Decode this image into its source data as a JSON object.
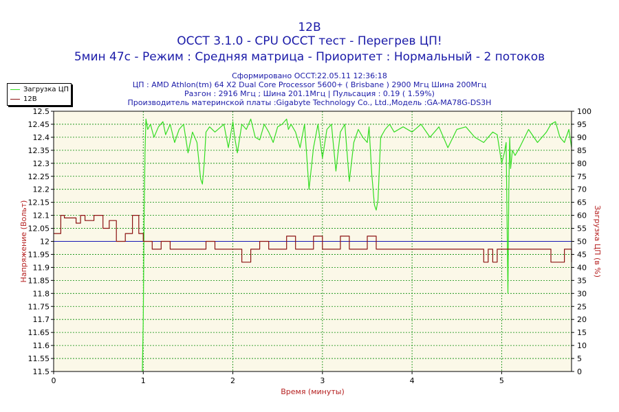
{
  "header": {
    "title": "12В",
    "subtitle": "OCCT 3.1.0 - CPU OCCT тест - Перегрев ЦП!",
    "mode_line": "5мин 47с - Режим : Средняя матрица - Приоритет : Нормальный - 2 потоков",
    "info_lines": [
      "Сформировано OCCT:22.05.11 12:36:18",
      "ЦП : AMD Athlon(tm) 64 X2 Dual Core Processor 5600+ ( Brisbane ) 2900 Mгц Шина 200Mгц",
      "Разгон : 2916 Mгц ; Шина 201.1Mгц | Пульсация : 0.19 ( 1.59%)",
      "Производитель материнской платы :Gigabyte Technology Co., Ltd.,Модель :GA-MA78G-DS3H"
    ]
  },
  "colors": {
    "text": "#1a1aa8",
    "cpu_line": "#33dd22",
    "voltage_line": "#8b1010",
    "reference_line": "#1414b4",
    "grid": "#008800",
    "plot_bg": "#fbf8e8",
    "axis_label": "#b52020"
  },
  "chart_data": {
    "type": "line",
    "xlabel": "Время (минуты)",
    "ylabel_left": "Напряжение (Вольт)",
    "ylabel_right": "Загрузка ЦП (в %)",
    "xlim": [
      0,
      5.78
    ],
    "ylim_left": [
      11.5,
      12.5
    ],
    "ylim_right": [
      0,
      100
    ],
    "x_ticks": [
      "0",
      "1",
      "2",
      "3",
      "4",
      "5"
    ],
    "y_left_ticks": [
      "11.5",
      "11.55",
      "11.6",
      "11.65",
      "11.7",
      "11.75",
      "11.8",
      "11.85",
      "11.9",
      "11.95",
      "12",
      "12.05",
      "12.1",
      "12.15",
      "12.2",
      "12.25",
      "12.3",
      "12.35",
      "12.4",
      "12.45",
      "12.5"
    ],
    "y_right_ticks": [
      "0",
      "5",
      "10",
      "15",
      "20",
      "25",
      "30",
      "35",
      "40",
      "45",
      "50",
      "55",
      "60",
      "65",
      "70",
      "75",
      "80",
      "85",
      "90",
      "95",
      "100"
    ],
    "grid": true,
    "legend": "top-left",
    "reference_line": 12.0,
    "series": [
      {
        "name": "Загрузка ЦП",
        "axis": "right",
        "x": [
          0.99,
          1.0,
          1.01,
          1.02,
          1.03,
          1.05,
          1.08,
          1.12,
          1.17,
          1.22,
          1.25,
          1.3,
          1.35,
          1.4,
          1.45,
          1.5,
          1.55,
          1.6,
          1.64,
          1.66,
          1.68,
          1.7,
          1.74,
          1.8,
          1.9,
          1.95,
          2.0,
          2.02,
          2.05,
          2.1,
          2.15,
          2.2,
          2.25,
          2.3,
          2.35,
          2.4,
          2.45,
          2.5,
          2.55,
          2.6,
          2.62,
          2.65,
          2.7,
          2.75,
          2.8,
          2.85,
          2.9,
          2.95,
          3.0,
          3.05,
          3.1,
          3.15,
          3.2,
          3.25,
          3.3,
          3.35,
          3.4,
          3.45,
          3.5,
          3.52,
          3.55,
          3.58,
          3.6,
          3.62,
          3.65,
          3.7,
          3.75,
          3.8,
          3.9,
          4.0,
          4.1,
          4.2,
          4.3,
          4.4,
          4.5,
          4.6,
          4.7,
          4.8,
          4.85,
          4.9,
          4.95,
          5.0,
          5.03,
          5.05,
          5.07,
          5.08,
          5.09,
          5.1,
          5.12,
          5.15,
          5.2,
          5.3,
          5.4,
          5.5,
          5.55,
          5.6,
          5.65,
          5.7,
          5.75,
          5.78
        ],
        "values": [
          0,
          20,
          60,
          85,
          97,
          93,
          95,
          90,
          94,
          96,
          91,
          95,
          88,
          93,
          95,
          84,
          92,
          88,
          74,
          72,
          80,
          92,
          94,
          92,
          95,
          86,
          96,
          90,
          84,
          95,
          93,
          97,
          90,
          89,
          95,
          92,
          88,
          94,
          95,
          97,
          93,
          95,
          92,
          86,
          95,
          70,
          86,
          95,
          82,
          93,
          95,
          77,
          92,
          95,
          73,
          88,
          93,
          90,
          88,
          94,
          76,
          64,
          62,
          66,
          90,
          93,
          95,
          92,
          94,
          92,
          95,
          90,
          94,
          86,
          93,
          94,
          90,
          88,
          90,
          92,
          91,
          80,
          84,
          88,
          30,
          70,
          90,
          78,
          85,
          83,
          86,
          93,
          88,
          92,
          95,
          96,
          90,
          88,
          93,
          86
        ]
      },
      {
        "name": "12В",
        "axis": "left",
        "x": [
          0,
          0.08,
          0.12,
          0.25,
          0.3,
          0.35,
          0.45,
          0.55,
          0.62,
          0.7,
          0.8,
          0.88,
          0.95,
          1.0,
          1.1,
          1.2,
          1.3,
          1.4,
          1.5,
          1.6,
          1.7,
          1.8,
          1.9,
          2.0,
          2.1,
          2.2,
          2.3,
          2.4,
          2.5,
          2.6,
          2.7,
          2.8,
          2.9,
          3.0,
          3.1,
          3.2,
          3.3,
          3.4,
          3.5,
          3.6,
          3.7,
          3.8,
          3.9,
          4.0,
          4.2,
          4.4,
          4.6,
          4.75,
          4.8,
          4.85,
          4.9,
          4.95,
          5.0,
          5.05,
          5.1,
          5.2,
          5.3,
          5.4,
          5.5,
          5.55,
          5.6,
          5.7,
          5.78
        ],
        "values": [
          12.03,
          12.1,
          12.09,
          12.07,
          12.1,
          12.08,
          12.1,
          12.05,
          12.08,
          12.0,
          12.03,
          12.1,
          12.03,
          12.0,
          11.97,
          12.0,
          11.97,
          11.97,
          11.97,
          11.97,
          12.0,
          11.97,
          11.97,
          11.97,
          11.92,
          11.97,
          12.0,
          11.97,
          11.97,
          12.02,
          11.97,
          11.97,
          12.02,
          11.97,
          11.97,
          12.02,
          11.97,
          11.97,
          12.02,
          11.97,
          11.97,
          11.97,
          11.97,
          11.97,
          11.97,
          11.97,
          11.97,
          11.97,
          11.92,
          11.97,
          11.92,
          11.97,
          11.97,
          11.97,
          11.97,
          11.97,
          11.97,
          11.97,
          11.97,
          11.92,
          11.92,
          11.97,
          11.92
        ]
      }
    ]
  }
}
